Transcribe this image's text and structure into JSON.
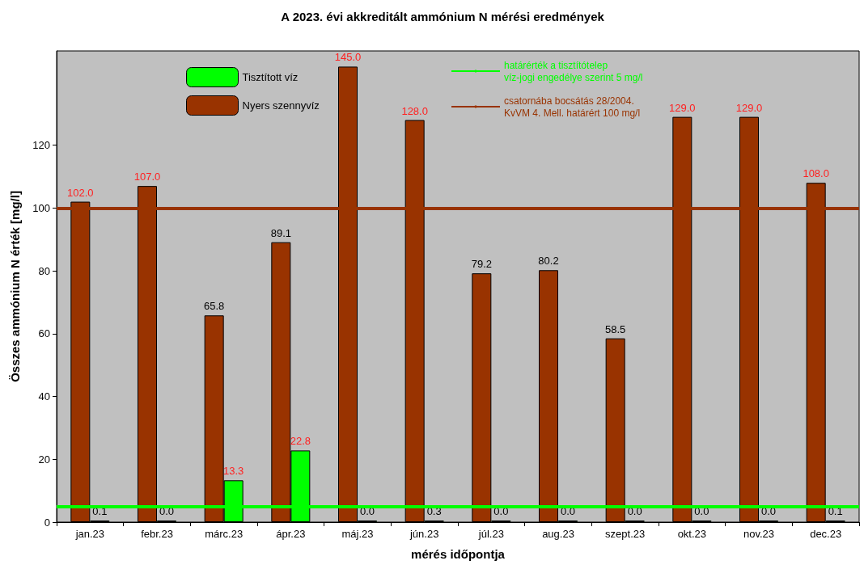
{
  "chart_data": {
    "type": "bar",
    "title": "A 2023. évi akkreditált ammónium N mérési eredmények",
    "xlabel": "mérés időpontja",
    "ylabel": "Összes ammónium N érték [mg/l]",
    "categories": [
      "jan.23",
      "febr.23",
      "márc.23",
      "ápr.23",
      "máj.23",
      "jún.23",
      "júl.23",
      "aug.23",
      "szept.23",
      "okt.23",
      "nov.23",
      "dec.23"
    ],
    "series": [
      {
        "name": "Nyers szennyvíz",
        "color": "#993300",
        "values": [
          102.0,
          107.0,
          65.8,
          89.1,
          145.0,
          128.0,
          79.2,
          80.2,
          58.5,
          129.0,
          129.0,
          108.0
        ],
        "value_labels": [
          "102.0",
          "107.0",
          "65.8",
          "89.1",
          "145.0",
          "128.0",
          "79.2",
          "80.2",
          "58.5",
          "129.0",
          "129.0",
          "108.0"
        ]
      },
      {
        "name": "Tisztított víz",
        "color": "#00ff00",
        "values": [
          0.1,
          0.0,
          13.3,
          22.8,
          0.0,
          0.3,
          0.0,
          0.0,
          0.0,
          0.0,
          0.0,
          0.1
        ],
        "value_labels": [
          "0.1",
          "0.0",
          "13.3",
          "22.8",
          "0.0",
          "0.3",
          "0.0",
          "0.0",
          "0.0",
          "0.0",
          "0.0",
          "0.1"
        ]
      }
    ],
    "ylim": [
      0,
      150
    ],
    "yticks": [
      0,
      20,
      40,
      60,
      80,
      100,
      120
    ],
    "grid": false,
    "legend": "top",
    "ref_lines": [
      {
        "axis": "y",
        "value": 5,
        "label": "határérték a tisztítótelep víz-jogi engedélye szerint 5 mg/l",
        "color": "#00ff00"
      },
      {
        "axis": "y",
        "value": 100,
        "label": "csatornába bocsátás 28/2004. KvVM 4. Mell. határért 100 mg/l",
        "color": "#993300"
      }
    ]
  }
}
